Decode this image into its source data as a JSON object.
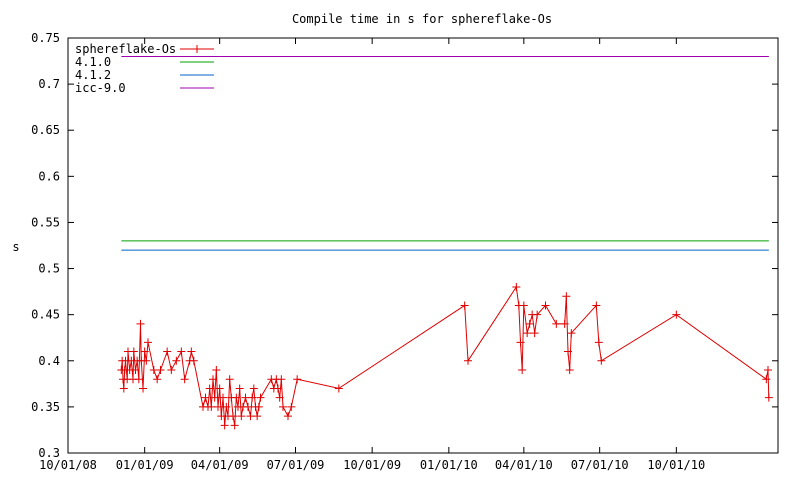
{
  "chart_data": {
    "type": "line",
    "title": "Compile time in s for sphereflake-Os",
    "xlabel": "",
    "ylabel": "s",
    "ylim": [
      0.3,
      0.75
    ],
    "yticks": [
      "0.3",
      "0.35",
      "0.4",
      "0.45",
      "0.5",
      "0.55",
      "0.6",
      "0.65",
      "0.7",
      "0.75"
    ],
    "xlim": [
      "2008-10-01",
      "2011-01-31"
    ],
    "xticks": [
      {
        "date": "2008-10-01",
        "label": "10/01/08"
      },
      {
        "date": "2009-01-01",
        "label": "01/01/09"
      },
      {
        "date": "2009-04-01",
        "label": "04/01/09"
      },
      {
        "date": "2009-07-01",
        "label": "07/01/09"
      },
      {
        "date": "2009-10-01",
        "label": "10/01/09"
      },
      {
        "date": "2010-01-01",
        "label": "01/01/10"
      },
      {
        "date": "2010-04-01",
        "label": "04/01/10"
      },
      {
        "date": "2010-07-01",
        "label": "07/01/10"
      },
      {
        "date": "2010-10-01",
        "label": "10/01/10"
      }
    ],
    "grid": false,
    "legend_position": "top-left",
    "series": [
      {
        "name": "sphereflake-Os",
        "color": "#e00000",
        "marker": "plus",
        "points": [
          [
            "2008-12-04",
            0.39
          ],
          [
            "2008-12-05",
            0.4
          ],
          [
            "2008-12-06",
            0.38
          ],
          [
            "2008-12-07",
            0.37
          ],
          [
            "2008-12-08",
            0.39
          ],
          [
            "2008-12-09",
            0.4
          ],
          [
            "2008-12-11",
            0.38
          ],
          [
            "2008-12-12",
            0.41
          ],
          [
            "2008-12-14",
            0.39
          ],
          [
            "2008-12-16",
            0.4
          ],
          [
            "2008-12-18",
            0.38
          ],
          [
            "2008-12-19",
            0.41
          ],
          [
            "2008-12-21",
            0.39
          ],
          [
            "2008-12-23",
            0.4
          ],
          [
            "2008-12-25",
            0.38
          ],
          [
            "2008-12-27",
            0.44
          ],
          [
            "2008-12-28",
            0.4
          ],
          [
            "2008-12-30",
            0.37
          ],
          [
            "2009-01-01",
            0.41
          ],
          [
            "2009-01-03",
            0.4
          ],
          [
            "2009-01-05",
            0.42
          ],
          [
            "2009-01-12",
            0.39
          ],
          [
            "2009-01-16",
            0.38
          ],
          [
            "2009-01-20",
            0.39
          ],
          [
            "2009-01-28",
            0.41
          ],
          [
            "2009-02-02",
            0.39
          ],
          [
            "2009-02-08",
            0.4
          ],
          [
            "2009-02-14",
            0.41
          ],
          [
            "2009-02-18",
            0.38
          ],
          [
            "2009-02-24",
            0.4
          ],
          [
            "2009-02-26",
            0.41
          ],
          [
            "2009-03-01",
            0.4
          ],
          [
            "2009-03-12",
            0.35
          ],
          [
            "2009-03-15",
            0.36
          ],
          [
            "2009-03-18",
            0.35
          ],
          [
            "2009-03-20",
            0.37
          ],
          [
            "2009-03-22",
            0.35
          ],
          [
            "2009-03-24",
            0.38
          ],
          [
            "2009-03-26",
            0.36
          ],
          [
            "2009-03-28",
            0.39
          ],
          [
            "2009-03-30",
            0.35
          ],
          [
            "2009-04-01",
            0.37
          ],
          [
            "2009-04-03",
            0.34
          ],
          [
            "2009-04-05",
            0.36
          ],
          [
            "2009-04-07",
            0.33
          ],
          [
            "2009-04-09",
            0.35
          ],
          [
            "2009-04-11",
            0.34
          ],
          [
            "2009-04-13",
            0.38
          ],
          [
            "2009-04-15",
            0.36
          ],
          [
            "2009-04-17",
            0.34
          ],
          [
            "2009-04-19",
            0.33
          ],
          [
            "2009-04-21",
            0.36
          ],
          [
            "2009-04-23",
            0.35
          ],
          [
            "2009-04-25",
            0.37
          ],
          [
            "2009-04-27",
            0.34
          ],
          [
            "2009-04-29",
            0.35
          ],
          [
            "2009-05-02",
            0.36
          ],
          [
            "2009-05-05",
            0.35
          ],
          [
            "2009-05-08",
            0.34
          ],
          [
            "2009-05-10",
            0.36
          ],
          [
            "2009-05-12",
            0.37
          ],
          [
            "2009-05-14",
            0.35
          ],
          [
            "2009-05-16",
            0.34
          ],
          [
            "2009-05-18",
            0.35
          ],
          [
            "2009-05-20",
            0.36
          ],
          [
            "2009-06-02",
            0.38
          ],
          [
            "2009-06-05",
            0.37
          ],
          [
            "2009-06-08",
            0.38
          ],
          [
            "2009-06-10",
            0.37
          ],
          [
            "2009-06-12",
            0.36
          ],
          [
            "2009-06-14",
            0.38
          ],
          [
            "2009-06-16",
            0.35
          ],
          [
            "2009-06-22",
            0.34
          ],
          [
            "2009-06-26",
            0.35
          ],
          [
            "2009-07-03",
            0.38
          ],
          [
            "2009-08-22",
            0.37
          ],
          [
            "2010-01-20",
            0.46
          ],
          [
            "2010-01-24",
            0.4
          ],
          [
            "2010-03-23",
            0.48
          ],
          [
            "2010-03-26",
            0.46
          ],
          [
            "2010-03-28",
            0.42
          ],
          [
            "2010-03-30",
            0.39
          ],
          [
            "2010-04-01",
            0.46
          ],
          [
            "2010-04-05",
            0.43
          ],
          [
            "2010-04-08",
            0.44
          ],
          [
            "2010-04-11",
            0.45
          ],
          [
            "2010-04-14",
            0.43
          ],
          [
            "2010-04-17",
            0.45
          ],
          [
            "2010-04-27",
            0.46
          ],
          [
            "2010-05-10",
            0.44
          ],
          [
            "2010-05-20",
            0.44
          ],
          [
            "2010-05-22",
            0.47
          ],
          [
            "2010-05-24",
            0.41
          ],
          [
            "2010-05-26",
            0.39
          ],
          [
            "2010-05-28",
            0.43
          ],
          [
            "2010-06-27",
            0.46
          ],
          [
            "2010-06-30",
            0.42
          ],
          [
            "2010-07-03",
            0.4
          ],
          [
            "2010-10-01",
            0.45
          ],
          [
            "2011-01-17",
            0.38
          ],
          [
            "2011-01-19",
            0.39
          ],
          [
            "2011-01-20",
            0.36
          ]
        ]
      },
      {
        "name": "4.1.0",
        "color": "#00a000",
        "value": 0.53
      },
      {
        "name": "4.1.2",
        "color": "#0060c8",
        "value": 0.52
      },
      {
        "name": "icc-9.0",
        "color": "#a000b0",
        "value": 0.73
      }
    ]
  }
}
